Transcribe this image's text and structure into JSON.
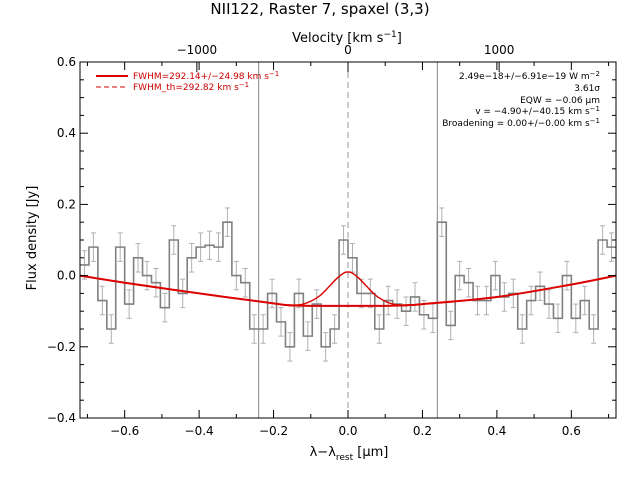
{
  "chart_data": {
    "type": "line",
    "title": "NII122, Raster 7, spaxel (3,3)",
    "xlabel": "λ−λ_rest [μm]",
    "xlabel_main": "λ−λ",
    "xlabel_sub": "rest",
    "xlabel_unit": " [μm]",
    "ylabel": "Flux density [Jy]",
    "top_xlabel": "Velocity [km s⁻¹]",
    "top_xlabel_main": "Velocity [km s",
    "top_xlabel_sup": "−1",
    "top_xlabel_end": "]",
    "xlim": [
      -0.72,
      0.72
    ],
    "ylim": [
      -0.4,
      0.6
    ],
    "xticks": [
      -0.6,
      -0.4,
      -0.2,
      0.0,
      0.2,
      0.4,
      0.6
    ],
    "xtick_labels": [
      "−0.6",
      "−0.4",
      "−0.2",
      "0.0",
      "0.2",
      "0.4",
      "0.6"
    ],
    "yticks": [
      -0.4,
      -0.2,
      0.0,
      0.2,
      0.4,
      0.6
    ],
    "ytick_labels": [
      "−0.4",
      "−0.2",
      "0.0",
      "0.2",
      "0.4",
      "0.6"
    ],
    "top_ticks_um": [
      -0.406,
      0.0,
      0.406
    ],
    "top_tick_labels": [
      "−1000",
      "0",
      "1000"
    ],
    "vlines": [
      -0.24,
      0.0,
      0.24
    ],
    "legend_position": "top-left",
    "legend": [
      {
        "label": "FWHM=292.14+/−24.98 km s",
        "sup": "−1",
        "style": "solid",
        "color": "#dd0000"
      },
      {
        "label": "FWHM_th=292.82 km s",
        "sup": "−1",
        "style": "dashed",
        "color": "#dd0000"
      }
    ],
    "annotations": [
      {
        "text": "2.49e−18+/−6.91e−19 W m",
        "sup": "−2"
      },
      {
        "text": "3.61σ",
        "sup": ""
      },
      {
        "text": "EQW = −0.06 μm",
        "sup": ""
      },
      {
        "text": "v = −4.90+/−40.15 km s",
        "sup": "−1"
      },
      {
        "text": "Broadening = 0.00+/−0.00 km s",
        "sup": "−1"
      }
    ],
    "spectrum": {
      "color": "#808080",
      "edges": [
        -0.72,
        -0.696,
        -0.672,
        -0.648,
        -0.624,
        -0.6,
        -0.576,
        -0.552,
        -0.528,
        -0.504,
        -0.48,
        -0.456,
        -0.432,
        -0.408,
        -0.384,
        -0.36,
        -0.336,
        -0.312,
        -0.288,
        -0.264,
        -0.24,
        -0.216,
        -0.192,
        -0.168,
        -0.144,
        -0.12,
        -0.096,
        -0.072,
        -0.048,
        -0.024,
        0.0,
        0.024,
        0.048,
        0.072,
        0.096,
        0.12,
        0.144,
        0.168,
        0.192,
        0.216,
        0.24,
        0.264,
        0.288,
        0.312,
        0.336,
        0.36,
        0.384,
        0.408,
        0.432,
        0.456,
        0.48,
        0.504,
        0.528,
        0.552,
        0.576,
        0.6,
        0.624,
        0.648,
        0.672,
        0.696,
        0.72
      ],
      "values": [
        0.03,
        0.08,
        -0.07,
        -0.15,
        0.08,
        -0.08,
        0.05,
        0.0,
        -0.02,
        -0.09,
        0.1,
        -0.05,
        0.05,
        0.08,
        0.085,
        0.08,
        0.15,
        0.0,
        -0.02,
        -0.15,
        -0.15,
        -0.05,
        -0.13,
        -0.2,
        -0.05,
        -0.17,
        -0.08,
        -0.2,
        -0.15,
        0.1,
        0.05,
        -0.05,
        -0.05,
        -0.15,
        -0.07,
        -0.08,
        -0.1,
        -0.06,
        -0.11,
        -0.12,
        0.15,
        -0.14,
        0.0,
        -0.02,
        -0.07,
        -0.07,
        0.0,
        -0.06,
        -0.05,
        -0.15,
        -0.07,
        -0.03,
        -0.08,
        -0.12,
        0.0,
        -0.12,
        -0.07,
        -0.15,
        0.1,
        0.08
      ],
      "errors": [
        0.04,
        0.04,
        0.04,
        0.04,
        0.04,
        0.04,
        0.04,
        0.04,
        0.04,
        0.04,
        0.04,
        0.04,
        0.04,
        0.04,
        0.04,
        0.04,
        0.04,
        0.04,
        0.04,
        0.04,
        0.04,
        0.04,
        0.04,
        0.04,
        0.04,
        0.04,
        0.04,
        0.04,
        0.04,
        0.04,
        0.04,
        0.04,
        0.04,
        0.04,
        0.04,
        0.04,
        0.04,
        0.04,
        0.04,
        0.04,
        0.04,
        0.04,
        0.04,
        0.04,
        0.04,
        0.04,
        0.04,
        0.04,
        0.04,
        0.04,
        0.04,
        0.04,
        0.04,
        0.04,
        0.04,
        0.04,
        0.04,
        0.04,
        0.04,
        0.04
      ]
    },
    "continuum": {
      "color": "#dd0000",
      "x": [
        -0.72,
        -0.6,
        -0.4,
        -0.2,
        -0.16,
        -0.1,
        0.0,
        0.1,
        0.16,
        0.2,
        0.4,
        0.6,
        0.72
      ],
      "y": [
        0.0,
        -0.02,
        -0.05,
        -0.078,
        -0.083,
        -0.085,
        -0.085,
        -0.085,
        -0.083,
        -0.08,
        -0.06,
        -0.025,
        0.0
      ]
    },
    "fit": {
      "color": "#dd0000",
      "x": [
        -0.2,
        -0.16,
        -0.12,
        -0.08,
        -0.05,
        -0.03,
        -0.01,
        0.0,
        0.01,
        0.03,
        0.05,
        0.08,
        0.12,
        0.16,
        0.2
      ],
      "y": [
        -0.078,
        -0.083,
        -0.08,
        -0.06,
        -0.03,
        -0.008,
        0.008,
        0.01,
        0.008,
        -0.008,
        -0.03,
        -0.06,
        -0.08,
        -0.083,
        -0.08
      ]
    }
  }
}
